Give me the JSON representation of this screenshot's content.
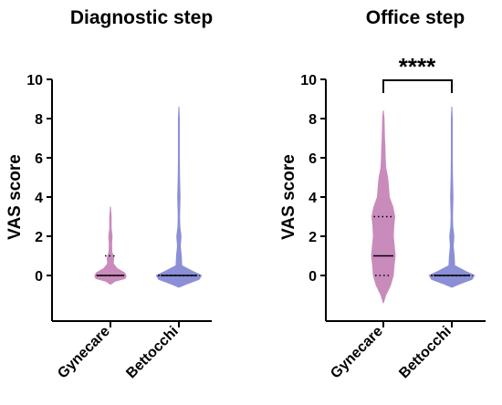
{
  "chart_data": [
    {
      "type": "violin",
      "title": "Diagnostic step",
      "ylabel": "VAS score",
      "ylim": [
        0,
        10
      ],
      "yticks": [
        0,
        2,
        4,
        6,
        8,
        10
      ],
      "categories": [
        "Gynecare",
        "Bettocchi"
      ],
      "series": [
        {
          "color": "#c98bbc",
          "median": 0,
          "q1": 0,
          "q3": 1,
          "profile": [
            [
              -0.45,
              0
            ],
            [
              -0.3,
              0.18
            ],
            [
              -0.15,
              0.62
            ],
            [
              0,
              0.66
            ],
            [
              0.15,
              0.58
            ],
            [
              0.35,
              0.28
            ],
            [
              0.6,
              0.12
            ],
            [
              0.9,
              0.14
            ],
            [
              1.2,
              0.06
            ],
            [
              1.6,
              0.05
            ],
            [
              2.0,
              0.07
            ],
            [
              2.4,
              0.03
            ],
            [
              3.0,
              0.03
            ],
            [
              3.5,
              0
            ]
          ]
        },
        {
          "color": "#8b8fd6",
          "median": 0,
          "q1": 0,
          "q3": 0,
          "profile": [
            [
              -0.6,
              0
            ],
            [
              -0.4,
              0.4
            ],
            [
              -0.2,
              0.85
            ],
            [
              0,
              0.95
            ],
            [
              0.2,
              0.6
            ],
            [
              0.5,
              0.12
            ],
            [
              1.0,
              0.1
            ],
            [
              1.5,
              0.06
            ],
            [
              2.0,
              0.09
            ],
            [
              2.5,
              0.04
            ],
            [
              3.0,
              0.03
            ],
            [
              4.0,
              0.05
            ],
            [
              5.0,
              0.03
            ],
            [
              6.0,
              0.02
            ],
            [
              7.0,
              0.02
            ],
            [
              8.0,
              0.02
            ],
            [
              8.6,
              0
            ]
          ]
        }
      ]
    },
    {
      "type": "violin",
      "title": "Office step",
      "ylabel": "VAS score",
      "ylim": [
        0,
        10
      ],
      "yticks": [
        0,
        2,
        4,
        6,
        8,
        10
      ],
      "categories": [
        "Gynecare",
        "Bettocchi"
      ],
      "significance": "****",
      "series": [
        {
          "color": "#c98bbc",
          "median": 1,
          "q1": 0,
          "q3": 3,
          "profile": [
            [
              -1.4,
              0
            ],
            [
              -1.0,
              0.1
            ],
            [
              -0.5,
              0.3
            ],
            [
              0,
              0.42
            ],
            [
              0.5,
              0.45
            ],
            [
              1.0,
              0.5
            ],
            [
              1.5,
              0.46
            ],
            [
              2.0,
              0.42
            ],
            [
              2.5,
              0.44
            ],
            [
              3.0,
              0.48
            ],
            [
              3.5,
              0.4
            ],
            [
              4.0,
              0.25
            ],
            [
              4.5,
              0.22
            ],
            [
              5.0,
              0.18
            ],
            [
              5.5,
              0.1
            ],
            [
              6.0,
              0.08
            ],
            [
              6.5,
              0.07
            ],
            [
              7.0,
              0.05
            ],
            [
              7.5,
              0.04
            ],
            [
              8.0,
              0.03
            ],
            [
              8.4,
              0
            ]
          ]
        },
        {
          "color": "#8b8fd6",
          "median": 0,
          "q1": 0,
          "q3": 0,
          "profile": [
            [
              -0.6,
              0
            ],
            [
              -0.4,
              0.4
            ],
            [
              -0.2,
              0.85
            ],
            [
              0,
              0.95
            ],
            [
              0.2,
              0.6
            ],
            [
              0.5,
              0.12
            ],
            [
              1.0,
              0.1
            ],
            [
              1.5,
              0.06
            ],
            [
              2.0,
              0.09
            ],
            [
              2.5,
              0.04
            ],
            [
              3.0,
              0.03
            ],
            [
              4.0,
              0.05
            ],
            [
              5.0,
              0.03
            ],
            [
              6.0,
              0.02
            ],
            [
              7.0,
              0.02
            ],
            [
              8.0,
              0.02
            ],
            [
              8.6,
              0
            ]
          ]
        }
      ]
    }
  ]
}
